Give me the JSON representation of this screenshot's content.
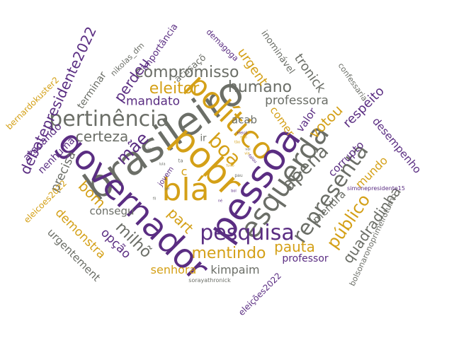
{
  "palette": {
    "purple": "#5a2d82",
    "gold": "#d4a017",
    "gray": "#6b6e67"
  },
  "words": [
    {
      "text": "brasileiro",
      "color": "gray"
    },
    {
      "text": "político",
      "color": "gold"
    },
    {
      "text": "governador",
      "color": "purple"
    },
    {
      "text": "pobr",
      "color": "gold"
    },
    {
      "text": "pessoa",
      "color": "purple"
    },
    {
      "text": "blá",
      "color": "gold"
    },
    {
      "text": "esquerda",
      "color": "gray"
    },
    {
      "text": "pertinência",
      "color": "gray"
    },
    {
      "text": "pesquisa",
      "color": "purple"
    },
    {
      "text": "representa",
      "color": "gray"
    },
    {
      "text": "boa",
      "color": "gold"
    },
    {
      "text": "compromisso",
      "color": "gray"
    },
    {
      "text": "apena",
      "color": "gray"
    },
    {
      "text": "humano",
      "color": "gray"
    },
    {
      "text": "eleitor",
      "color": "gold"
    },
    {
      "text": "mentindo",
      "color": "gold"
    },
    {
      "text": "debatepresidente2022",
      "color": "purple"
    },
    {
      "text": "certeza",
      "color": "gray"
    },
    {
      "text": "mandato",
      "color": "purple"
    },
    {
      "text": "professora",
      "color": "gray"
    },
    {
      "text": "mãe",
      "color": "purple"
    },
    {
      "text": "pauta",
      "color": "gold"
    },
    {
      "text": "público",
      "color": "gold"
    },
    {
      "text": "quadradinha",
      "color": "gray"
    },
    {
      "text": "votou",
      "color": "gold"
    },
    {
      "text": "respeito",
      "color": "purple"
    },
    {
      "text": "senhora",
      "color": "gold"
    },
    {
      "text": "kimpaim",
      "color": "gray"
    },
    {
      "text": "bom",
      "color": "gold"
    },
    {
      "text": "mundo",
      "color": "gold"
    },
    {
      "text": "tronick",
      "color": "gray"
    },
    {
      "text": "urgent",
      "color": "gold"
    },
    {
      "text": "part",
      "color": "gold"
    },
    {
      "text": "milhõ",
      "color": "gray"
    },
    {
      "text": "demonstra",
      "color": "gold"
    },
    {
      "text": "opção",
      "color": "purple"
    },
    {
      "text": "perdeu",
      "color": "purple"
    },
    {
      "text": "precisa",
      "color": "gray"
    },
    {
      "text": "corrupto",
      "color": "purple"
    },
    {
      "text": "mentira",
      "color": "gray"
    },
    {
      "text": "desempenho",
      "color": "purple"
    },
    {
      "text": "consegu",
      "color": "gray"
    },
    {
      "text": "comer",
      "color": "gold"
    },
    {
      "text": "valor",
      "color": "purple"
    },
    {
      "text": "acab",
      "color": "gray"
    },
    {
      "text": "atacando",
      "color": "purple"
    },
    {
      "text": "nenhuma",
      "color": "purple"
    },
    {
      "text": "urgentement",
      "color": "gray"
    },
    {
      "text": "professor",
      "color": "purple"
    },
    {
      "text": "terminar",
      "color": "gray"
    },
    {
      "text": "acusaçõ",
      "color": "gray"
    },
    {
      "text": "importância",
      "color": "purple"
    },
    {
      "text": "inominável",
      "color": "gray"
    },
    {
      "text": "eleicoes2022",
      "color": "gold"
    },
    {
      "text": "bolsonaronoprimeiroturno",
      "color": "gray"
    },
    {
      "text": "eleições2022",
      "color": "purple"
    },
    {
      "text": "bernardokuster2",
      "color": "gold"
    },
    {
      "text": "demagoga",
      "color": "purple"
    },
    {
      "text": "confessaria",
      "color": "gray"
    },
    {
      "text": "nikolas_dm",
      "color": "gray"
    },
    {
      "text": "ir",
      "color": "gray"
    },
    {
      "text": "c",
      "color": "gold"
    },
    {
      "text": "jovem",
      "color": "purple"
    },
    {
      "text": "simonepresidente15",
      "color": "purple"
    },
    {
      "text": "sorayathronick",
      "color": "gray"
    },
    {
      "text": "ta",
      "color": "gray"
    },
    {
      "text": "pau",
      "color": "gray"
    },
    {
      "text": "falou",
      "color": "purple"
    },
    {
      "text": "eleiçõ",
      "color": "purple"
    },
    {
      "text": "tão",
      "color": "gold"
    },
    {
      "text": "fil",
      "color": "gray"
    },
    {
      "text": "vai",
      "color": "gray"
    },
    {
      "text": "via",
      "color": "gold"
    },
    {
      "text": "tudo",
      "color": "gold"
    },
    {
      "text": "todo",
      "color": "gray"
    },
    {
      "text": "bol",
      "color": "purple"
    },
    {
      "text": "ser",
      "color": "gray"
    },
    {
      "text": "não",
      "color": "gold"
    },
    {
      "text": "né",
      "color": "purple"
    },
    {
      "text": "lula",
      "color": "gray"
    }
  ]
}
